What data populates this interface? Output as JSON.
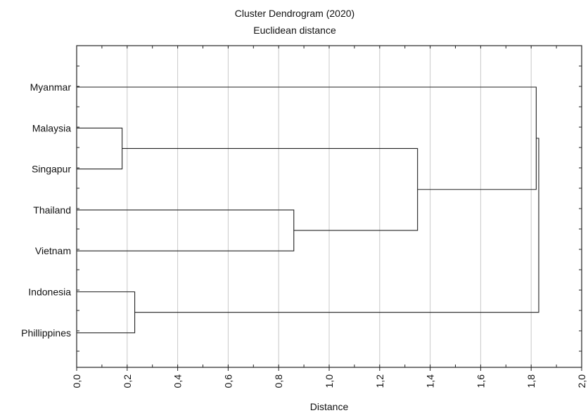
{
  "chart_data": {
    "type": "dendrogram",
    "title": "Cluster Dendrogram (2020)",
    "subtitle": "Euclidean distance",
    "xlabel": "Distance",
    "xlim": [
      0,
      2.0
    ],
    "x_ticks": [
      0.0,
      0.2,
      0.4,
      0.6,
      0.8,
      1.0,
      1.2,
      1.4,
      1.6,
      1.8,
      2.0
    ],
    "x_tick_labels": [
      "0,0",
      "0,2",
      "0,4",
      "0,6",
      "0,8",
      "1,0",
      "1,2",
      "1,4",
      "1,6",
      "1,8",
      "2,0"
    ],
    "grid": true,
    "leaves": [
      "Myanmar",
      "Malaysia",
      "Singapur",
      "Thailand",
      "Vietnam",
      "Indonesia",
      "Phillippines"
    ],
    "merges": [
      {
        "id": "c1",
        "children": [
          "Malaysia",
          "Singapur"
        ],
        "distance": 0.18
      },
      {
        "id": "c2",
        "children": [
          "Indonesia",
          "Phillippines"
        ],
        "distance": 0.23
      },
      {
        "id": "c3",
        "children": [
          "Thailand",
          "Vietnam"
        ],
        "distance": 0.86
      },
      {
        "id": "c4",
        "children": [
          "c1",
          "c3"
        ],
        "distance": 1.35
      },
      {
        "id": "c5",
        "children": [
          "Myanmar",
          "c4"
        ],
        "distance": 1.82
      },
      {
        "id": "c6",
        "children": [
          "c5",
          "c2"
        ],
        "distance": 1.83
      }
    ]
  }
}
